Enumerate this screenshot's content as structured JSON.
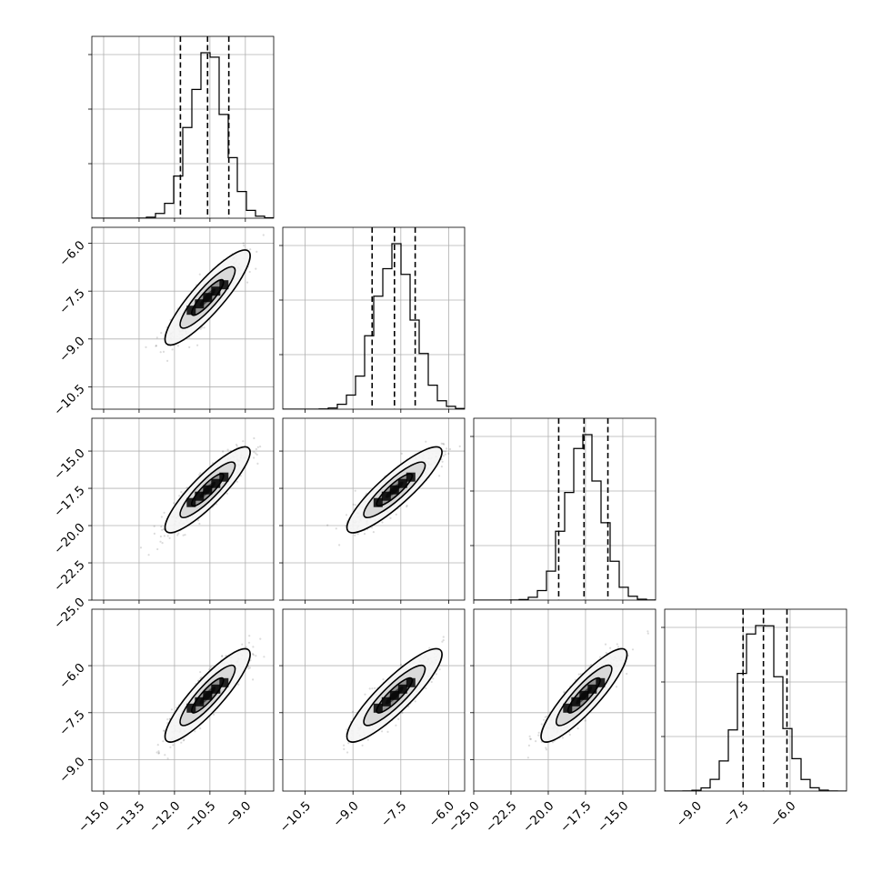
{
  "chart_data": {
    "type": "scatter",
    "kind": "corner-plot",
    "title": "",
    "parameters": [
      {
        "xlim": [
          -15.5,
          -7.8
        ],
        "ticks": [
          -15.0,
          -13.5,
          -12.0,
          -10.5,
          -9.0
        ],
        "tick_labels": [
          "−15.0",
          "−13.5",
          "−12.0",
          "−10.5",
          "−9.0"
        ],
        "mean": -10.6,
        "sd": 0.75,
        "quantiles": [
          -11.75,
          -10.6,
          -9.7
        ]
      },
      {
        "xlim": [
          -11.2,
          -5.5
        ],
        "ticks": [
          -10.5,
          -9.0,
          -7.5,
          -6.0
        ],
        "tick_labels": [
          "−10.5",
          "−9.0",
          "−7.5",
          "−6.0"
        ],
        "mean": -7.7,
        "sd": 0.62,
        "quantiles": [
          -8.4,
          -7.7,
          -7.05
        ]
      },
      {
        "xlim": [
          -25.0,
          -12.8
        ],
        "ticks": [
          -25.0,
          -22.5,
          -20.0,
          -17.5,
          -15.0
        ],
        "tick_labels": [
          "−25.0",
          "−22.5",
          "−20.0",
          "−17.5",
          "−15.0"
        ],
        "mean": -17.6,
        "sd": 1.2,
        "quantiles": [
          -19.3,
          -17.6,
          -16.0
        ]
      },
      {
        "xlim": [
          -10.0,
          -4.2
        ],
        "ticks": [
          -9.0,
          -7.5,
          -6.0
        ],
        "tick_labels": [
          "−9.0",
          "−7.5",
          "−6.0"
        ],
        "mean": -6.95,
        "sd": 0.62,
        "quantiles": [
          -7.5,
          -6.85,
          -6.1
        ]
      }
    ],
    "xlabel": "",
    "ylabel": "",
    "grid": true,
    "correlation": 0.88
  }
}
